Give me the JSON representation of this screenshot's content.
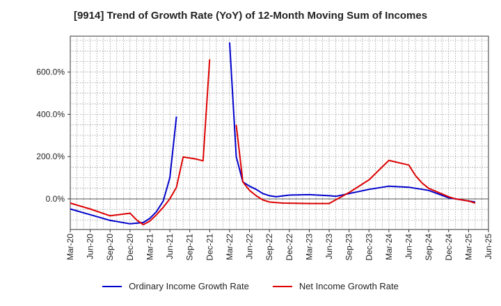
{
  "chart_data": {
    "type": "line",
    "title": "[9914]  Trend of Growth Rate (YoY) of 12-Month Moving Sum of Incomes",
    "xlabel": "",
    "ylabel": "",
    "ylim": [
      -145,
      770
    ],
    "y_ticks": [
      0,
      200,
      400,
      600
    ],
    "y_tick_labels": [
      "0.0%",
      "200.0%",
      "400.0%",
      "600.0%"
    ],
    "x_tick_labels": [
      "Mar-20",
      "Jun-20",
      "Sep-20",
      "Dec-20",
      "Mar-21",
      "Jun-21",
      "Sep-21",
      "Dec-21",
      "Mar-22",
      "Jun-22",
      "Sep-22",
      "Dec-22",
      "Mar-23",
      "Jun-23",
      "Sep-23",
      "Dec-23",
      "Mar-24",
      "Jun-24",
      "Sep-24",
      "Dec-24",
      "Mar-25",
      "Jun-25"
    ],
    "grid": true,
    "legend_position": "bottom",
    "series": [
      {
        "name": "Ordinary Income Growth Rate",
        "color": "#0000cc",
        "points": [
          [
            0,
            -48
          ],
          [
            3,
            -75
          ],
          [
            6,
            -102
          ],
          [
            9,
            -118
          ],
          [
            11,
            -112
          ],
          [
            12,
            -92
          ],
          [
            13,
            -60
          ],
          [
            14,
            -10
          ],
          [
            15,
            100
          ],
          [
            16,
            390
          ],
          [
            null,
            null
          ],
          [
            24,
            740
          ],
          [
            25,
            200
          ],
          [
            26,
            80
          ],
          [
            27,
            60
          ],
          [
            28,
            45
          ],
          [
            29,
            25
          ],
          [
            30,
            15
          ],
          [
            31,
            10
          ],
          [
            33,
            18
          ],
          [
            36,
            20
          ],
          [
            39,
            15
          ],
          [
            40,
            12
          ],
          [
            42,
            25
          ],
          [
            45,
            45
          ],
          [
            48,
            60
          ],
          [
            51,
            55
          ],
          [
            54,
            40
          ],
          [
            57,
            5
          ],
          [
            60,
            -10
          ],
          [
            61,
            -15
          ]
        ]
      },
      {
        "name": "Net Income Growth Rate",
        "color": "#dd0000",
        "points": [
          [
            0,
            -20
          ],
          [
            3,
            -48
          ],
          [
            6,
            -80
          ],
          [
            9,
            -68
          ],
          [
            10,
            -100
          ],
          [
            11,
            -122
          ],
          [
            12,
            -105
          ],
          [
            13,
            -75
          ],
          [
            14,
            -40
          ],
          [
            15,
            0
          ],
          [
            16,
            55
          ],
          [
            17,
            198
          ],
          [
            19,
            188
          ],
          [
            20,
            180
          ],
          [
            21,
            660
          ],
          [
            null,
            null
          ],
          [
            25,
            350
          ],
          [
            26,
            80
          ],
          [
            27,
            40
          ],
          [
            28,
            15
          ],
          [
            29,
            -5
          ],
          [
            30,
            -15
          ],
          [
            32,
            -20
          ],
          [
            36,
            -22
          ],
          [
            39,
            -22
          ],
          [
            42,
            30
          ],
          [
            45,
            90
          ],
          [
            48,
            182
          ],
          [
            51,
            160
          ],
          [
            52,
            110
          ],
          [
            53,
            75
          ],
          [
            54,
            50
          ],
          [
            57,
            10
          ],
          [
            58,
            0
          ],
          [
            60,
            -10
          ],
          [
            61,
            -20
          ]
        ]
      }
    ]
  }
}
